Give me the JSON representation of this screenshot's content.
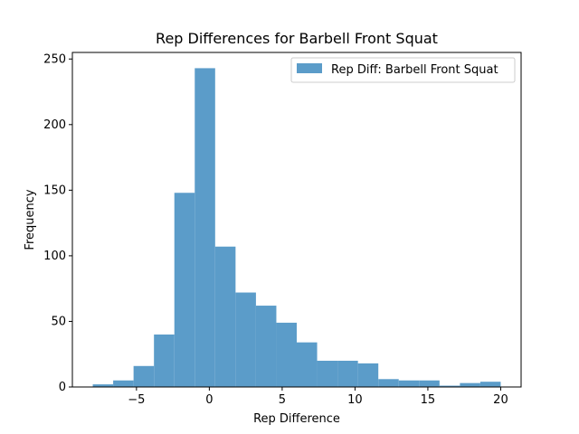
{
  "chart_data": {
    "type": "bar",
    "title": "Rep Differences for Barbell Front Squat",
    "xlabel": "Rep Difference",
    "ylabel": "Frequency",
    "xlim": [
      -9.4,
      21.4
    ],
    "ylim": [
      0,
      255
    ],
    "x_ticks": [
      -5,
      0,
      5,
      10,
      15,
      20
    ],
    "y_ticks": [
      0,
      50,
      100,
      150,
      200,
      250
    ],
    "bins": {
      "start": -8,
      "width": 1.4,
      "counts": [
        2,
        5,
        16,
        40,
        148,
        243,
        107,
        72,
        62,
        49,
        34,
        20,
        20,
        18,
        6,
        5,
        5,
        1,
        3,
        4
      ]
    },
    "series": [
      {
        "name": "Rep Diff: Barbell Front Squat",
        "color": "#5b9cc9"
      }
    ],
    "legend_position": "upper right",
    "grid": false
  }
}
